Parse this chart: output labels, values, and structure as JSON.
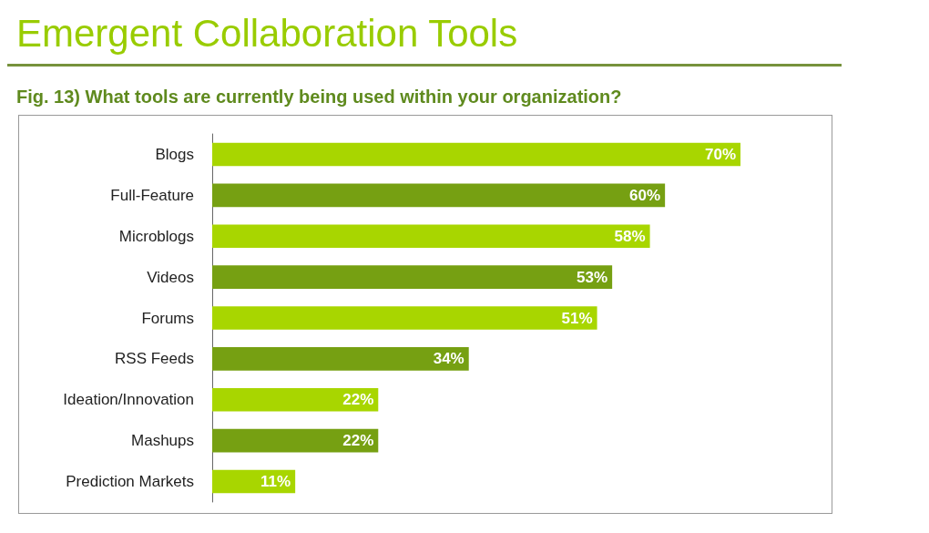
{
  "chart_data": {
    "type": "bar",
    "orientation": "horizontal",
    "title": "Emergent Collaboration Tools",
    "subtitle": "Fig. 13) What tools are currently being used within your organization?",
    "categories": [
      "Blogs",
      "Full-Feature",
      "Microblogs",
      "Videos",
      "Forums",
      "RSS Feeds",
      "Ideation/Innovation",
      "Mashups",
      "Prediction Markets"
    ],
    "values": [
      70,
      60,
      58,
      53,
      51,
      34,
      22,
      22,
      11
    ],
    "value_labels": [
      "70%",
      "60%",
      "58%",
      "53%",
      "51%",
      "34%",
      "22%",
      "22%",
      "11%"
    ],
    "colors": [
      "#a8d600",
      "#76a012",
      "#a8d600",
      "#76a012",
      "#a8d600",
      "#76a012",
      "#a8d600",
      "#76a012",
      "#a8d600"
    ]
  }
}
